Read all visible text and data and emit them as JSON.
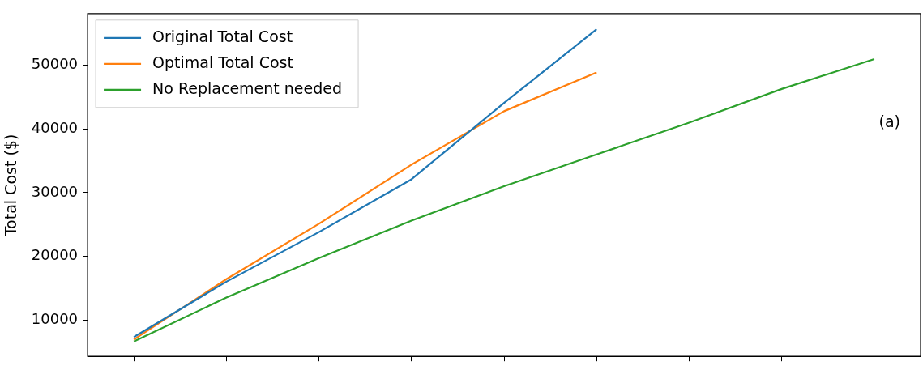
{
  "chart_data": {
    "type": "line",
    "ylabel": "Total Cost ($)",
    "categories": [
      null,
      null,
      null,
      null,
      null,
      null,
      null,
      null,
      null
    ],
    "series": [
      {
        "name": "Original Total Cost",
        "color": "#1f77b4",
        "values": [
          7300,
          16000,
          23800,
          32100,
          44100,
          55700,
          null,
          null,
          null
        ]
      },
      {
        "name": "Optimal Total Cost",
        "color": "#ff7f0e",
        "values": [
          6900,
          16400,
          25100,
          34400,
          42800,
          48900,
          null,
          null,
          null
        ]
      },
      {
        "name": "No Replacement needed",
        "color": "#2ca02c",
        "values": [
          6600,
          13500,
          19700,
          25600,
          31000,
          36000,
          41000,
          46300,
          51000
        ]
      }
    ],
    "ylim": [
      4250,
      58150
    ],
    "yticks": [
      10000,
      20000,
      30000,
      40000,
      50000
    ],
    "tick_labels": "y",
    "legend": "top left",
    "grid": false,
    "marker": "none",
    "line_style": "solid",
    "annotations": [
      "(a)"
    ]
  }
}
